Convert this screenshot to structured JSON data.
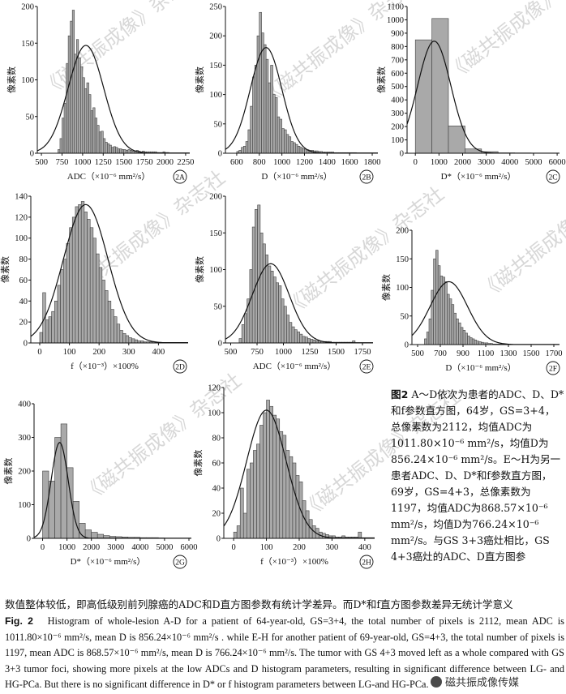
{
  "chart_data": [
    {
      "id": "2A",
      "type": "bar",
      "ylabel": "像素数",
      "xlabel": "ADC（×10⁻⁶ mm²/s）",
      "xlim": [
        450,
        2300
      ],
      "ylim": [
        0,
        200
      ],
      "xticks": [
        500,
        750,
        1000,
        1250,
        1500,
        1750,
        2000,
        2250
      ],
      "yticks": [
        0,
        50,
        100,
        150,
        200
      ],
      "bin_width": 25,
      "bin_start": 700,
      "values": [
        5,
        20,
        48,
        68,
        122,
        160,
        180,
        195,
        135,
        155,
        130,
        118,
        103,
        88,
        96,
        80,
        58,
        62,
        48,
        38,
        29,
        30,
        20,
        15,
        13,
        11,
        8,
        9,
        8,
        6,
        6,
        5,
        5,
        4,
        5,
        4,
        3,
        3,
        4,
        3,
        2,
        3,
        2,
        2,
        2,
        2,
        2,
        2,
        1,
        1,
        1,
        2,
        1,
        1
      ],
      "fit": {
        "mean": 1040,
        "peak": 147,
        "sd": 215
      }
    },
    {
      "id": "2B",
      "type": "bar",
      "ylabel": "像素数",
      "xlabel": "D（×10⁻⁶ mm²/s）",
      "xlim": [
        500,
        1850
      ],
      "ylim": [
        0,
        250
      ],
      "xticks": [
        600,
        800,
        1000,
        1200,
        1400,
        1600,
        1800
      ],
      "yticks": [
        0,
        50,
        100,
        150,
        200,
        250
      ],
      "bin_width": 20,
      "bin_start": 600,
      "values": [
        3,
        5,
        10,
        12,
        20,
        40,
        80,
        130,
        150,
        200,
        240,
        205,
        185,
        160,
        120,
        150,
        100,
        95,
        62,
        58,
        42,
        40,
        32,
        28,
        20,
        18,
        15,
        12,
        10,
        8,
        7,
        6,
        5,
        5,
        4,
        4,
        3,
        3,
        2,
        2,
        2,
        2,
        2,
        1,
        1,
        1,
        1,
        1,
        1,
        1,
        1,
        1,
        1
      ],
      "fit": {
        "mean": 860,
        "peak": 180,
        "sd": 140
      }
    },
    {
      "id": "2C",
      "type": "bar",
      "ylabel": "像素数",
      "xlabel": "D*（×10⁻⁶ mm²/s）",
      "xlim": [
        -350,
        6100
      ],
      "ylim": [
        0,
        1100
      ],
      "xticks": [
        0,
        1000,
        2000,
        3000,
        4000,
        5000,
        6000
      ],
      "yticks": [
        0,
        100,
        200,
        300,
        400,
        500,
        600,
        700,
        800,
        900,
        1000,
        1100
      ],
      "bin_width": 700,
      "bin_start": 0,
      "values": [
        850,
        1010,
        205,
        32,
        12,
        3,
        2,
        1
      ],
      "fit": {
        "mean": 800,
        "peak": 840,
        "sd": 700
      }
    },
    {
      "id": "2D",
      "type": "bar",
      "ylabel": "像素数",
      "xlabel": "f（×10⁻³）×100%",
      "xlim": [
        -30,
        500
      ],
      "ylim": [
        0,
        140
      ],
      "xticks": [
        0,
        100,
        200,
        300,
        400
      ],
      "yticks": [
        0,
        20,
        40,
        60,
        80,
        100,
        120,
        140
      ],
      "bin_width": 10,
      "bin_start": 0,
      "values": [
        10,
        48,
        22,
        25,
        30,
        40,
        55,
        70,
        80,
        95,
        110,
        120,
        130,
        132,
        135,
        125,
        118,
        110,
        100,
        85,
        72,
        60,
        50,
        40,
        32,
        25,
        18,
        12,
        9,
        7,
        5,
        4,
        3,
        2,
        2,
        1,
        1,
        1,
        1
      ],
      "fit": {
        "mean": 155,
        "peak": 132,
        "sd": 75
      }
    },
    {
      "id": "2E",
      "type": "bar",
      "ylabel": "像素数",
      "xlabel": "ADC（×10⁻⁶ mm²/s）",
      "xlim": [
        450,
        1850
      ],
      "ylim": [
        0,
        200
      ],
      "xticks": [
        500,
        750,
        1000,
        1250,
        1500,
        1750
      ],
      "yticks": [
        0,
        50,
        100,
        150,
        200
      ],
      "bin_width": 25,
      "bin_start": 580,
      "values": [
        6,
        25,
        40,
        60,
        100,
        158,
        182,
        188,
        150,
        135,
        120,
        105,
        98,
        90,
        82,
        78,
        60,
        50,
        38,
        28,
        22,
        18,
        15,
        12,
        9,
        8,
        6,
        5,
        4,
        3,
        3,
        2,
        2,
        2,
        2,
        1,
        1,
        1,
        1,
        1,
        1,
        1,
        1,
        3
      ],
      "fit": {
        "mean": 880,
        "peak": 108,
        "sd": 175
      }
    },
    {
      "id": "2F",
      "type": "bar",
      "ylabel": "像素数",
      "xlabel": "D（×10⁻⁶ mm²/s）",
      "xlim": [
        450,
        1750
      ],
      "ylim": [
        0,
        200
      ],
      "xticks": [
        500,
        700,
        900,
        1100,
        1300,
        1500,
        1700
      ],
      "yticks": [
        0,
        50,
        100,
        150,
        200
      ],
      "bin_width": 20,
      "bin_start": 560,
      "values": [
        10,
        22,
        45,
        95,
        150,
        165,
        138,
        120,
        118,
        110,
        88,
        80,
        70,
        55,
        45,
        38,
        30,
        25,
        20,
        15,
        12,
        10,
        8,
        6,
        5,
        4,
        3,
        3,
        2,
        2,
        1,
        1,
        1,
        1,
        1
      ],
      "fit": {
        "mean": 775,
        "peak": 110,
        "sd": 165
      }
    },
    {
      "id": "2G",
      "type": "bar",
      "ylabel": "像素数",
      "xlabel": "D*（×10⁻⁶ mm²/s）",
      "xlim": [
        -350,
        6100
      ],
      "ylim": [
        0,
        400
      ],
      "xticks": [
        0,
        1000,
        2000,
        3000,
        4000,
        5000,
        6000
      ],
      "yticks": [
        0,
        100,
        200,
        300,
        400
      ],
      "bin_width": 250,
      "bin_start": 0,
      "values": [
        200,
        170,
        300,
        340,
        210,
        110,
        45,
        25,
        18,
        12,
        8,
        6,
        5,
        4,
        3,
        3,
        2,
        2,
        2,
        1
      ],
      "fit": {
        "mean": 700,
        "peak": 285,
        "sd": 350
      }
    },
    {
      "id": "2H",
      "type": "bar",
      "ylabel": "像素数",
      "xlabel": "f（×10⁻³）×100%",
      "xlim": [
        -30,
        430
      ],
      "ylim": [
        0,
        120
      ],
      "xticks": [
        0,
        100,
        200,
        300,
        400
      ],
      "yticks": [
        0,
        20,
        40,
        60,
        80,
        100,
        120
      ],
      "bin_width": 10,
      "bin_start": 0,
      "values": [
        5,
        10,
        40,
        20,
        55,
        60,
        70,
        75,
        90,
        100,
        110,
        105,
        98,
        95,
        85,
        82,
        70,
        65,
        60,
        50,
        45,
        30,
        22,
        15,
        10,
        8,
        5,
        4,
        3,
        2,
        2,
        1,
        1,
        2,
        1,
        1,
        1,
        1,
        5
      ],
      "fit": {
        "mean": 100,
        "peak": 102,
        "sd": 60
      }
    }
  ],
  "watermark": "《磁共振成像》杂志社",
  "caption_cn": {
    "fig": "图2",
    "text": "A～D依次为患者的ADC、D、D*和f参数直方图，64岁，GS=3+4，总像素数为2112，均值ADC为1011.80×10⁻⁶ mm²/s，均值D为856.24×10⁻⁶ mm²/s。E～H为另一患者ADC、D、D*和f参数直方图，69岁，GS=4+3，总像素数为1197，均值ADC为868.57×10⁻⁶ mm²/s，均值D为766.24×10⁻⁶ mm²/s。与GS 3+3癌灶相比，GS 4+3癌灶的ADC、D直方图参",
    "tail": "数值整体较低，即高低级别前列腺癌的ADC和D直方图参数有统计学差异。而D*和f直方图参数差异无统计学意义"
  },
  "caption_en": {
    "fig": "Fig. 2",
    "text": "Histogram of whole-lesion A-D for a patient of 64-year-old, GS=3+4, the total number of pixels is 2112, mean ADC is 1011.80×10⁻⁶ mm²/s, mean D is 856.24×10⁻⁶ mm²/s . while E-H for another patient of 69-year-old, GS=4+3, the total number of pixels is 1197, mean ADC is 868.57×10⁻⁶ mm²/s, mean D is 766.24×10⁻⁶ mm²/s. The tumor with GS 4+3 moved left as a whole compared with GS 3+3 tumor foci, showing more pixels at the low ADCs and D histogram parameters, resulting in significant difference between LG- and HG-PCa. But there is no significant difference in D* or f histogram parameters between LG-and HG-PCa."
  },
  "brand": "磁共振成像传媒"
}
